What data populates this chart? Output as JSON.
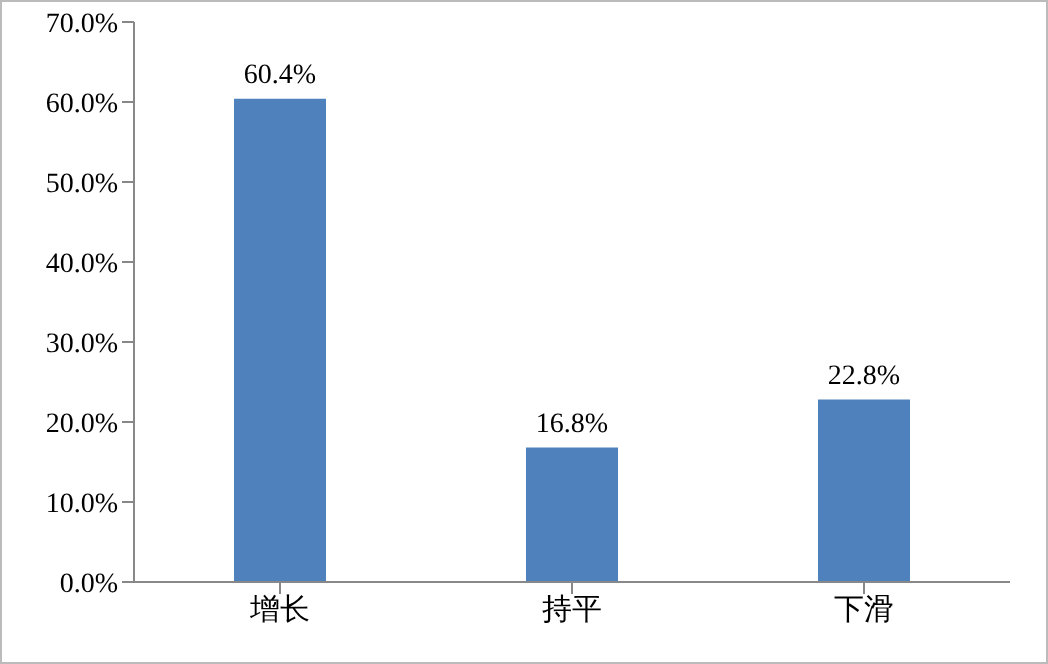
{
  "chart_data": {
    "type": "bar",
    "categories": [
      "增长",
      "持平",
      "下滑"
    ],
    "values": [
      60.4,
      16.8,
      22.8
    ],
    "value_labels": [
      "60.4%",
      "16.8%",
      "22.8%"
    ],
    "color": "#4f81bd",
    "ylim": [
      0,
      70
    ],
    "yticks": [
      {
        "value": 0,
        "label": "0.0%"
      },
      {
        "value": 10,
        "label": "10.0%"
      },
      {
        "value": 20,
        "label": "20.0%"
      },
      {
        "value": 30,
        "label": "30.0%"
      },
      {
        "value": 40,
        "label": "40.0%"
      },
      {
        "value": 50,
        "label": "50.0%"
      },
      {
        "value": 60,
        "label": "60.0%"
      },
      {
        "value": 70,
        "label": "70.0%"
      }
    ],
    "grid": false,
    "legend": false
  }
}
